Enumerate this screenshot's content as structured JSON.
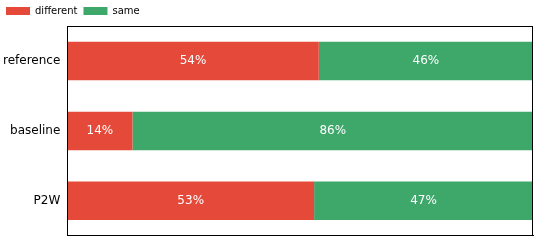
{
  "chart_data": {
    "type": "bar",
    "orientation": "horizontal",
    "stacked": true,
    "categories": [
      "reference",
      "baseline",
      "P2W"
    ],
    "series": [
      {
        "name": "different",
        "color": "#e5493a",
        "values": [
          54,
          14,
          53
        ],
        "value_labels": [
          "54%",
          "14%",
          "53%"
        ]
      },
      {
        "name": "same",
        "color": "#3ea76a",
        "values": [
          46,
          86,
          47
        ],
        "value_labels": [
          "46%",
          "86%",
          "47%"
        ]
      }
    ],
    "xlim": [
      0,
      100
    ],
    "grid": false,
    "legend": "upper left",
    "data_labels": true,
    "tick_labels": "y"
  }
}
